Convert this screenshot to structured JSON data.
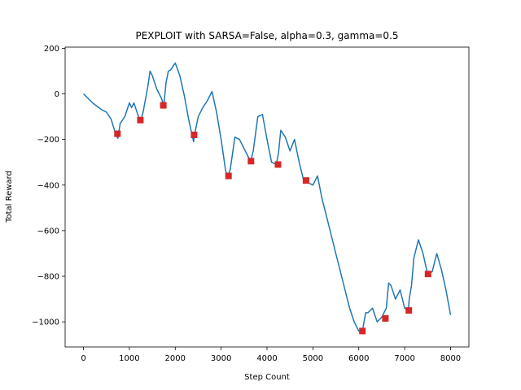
{
  "chart_data": {
    "type": "line",
    "title": "PEXPLOIT with SARSA=False, alpha=0.3, gamma=0.5",
    "xlabel": "Step Count",
    "ylabel": "Total Reward",
    "xlim": [
      -400,
      8400
    ],
    "ylim": [
      -1110,
      205
    ],
    "xticks": [
      0,
      1000,
      2000,
      3000,
      4000,
      5000,
      6000,
      7000,
      8000
    ],
    "yticks": [
      200,
      0,
      -200,
      -400,
      -600,
      -800,
      -1000
    ],
    "xtick_labels": [
      "0",
      "1000",
      "2000",
      "3000",
      "4000",
      "5000",
      "6000",
      "7000",
      "8000"
    ],
    "ytick_labels": [
      "200",
      "0",
      "−200",
      "−400",
      "−600",
      "−800",
      "−1000"
    ],
    "grid": false,
    "series": [
      {
        "color": "#1f77b4",
        "x": [
          0,
          100,
          200,
          300,
          400,
          500,
          600,
          700,
          750,
          800,
          900,
          1000,
          1050,
          1100,
          1200,
          1250,
          1300,
          1400,
          1450,
          1500,
          1600,
          1700,
          1750,
          1800,
          1850,
          1900,
          2000,
          2100,
          2200,
          2300,
          2400,
          2420,
          2500,
          2600,
          2700,
          2800,
          2900,
          3000,
          3100,
          3150,
          3200,
          3300,
          3400,
          3500,
          3600,
          3650,
          3700,
          3800,
          3900,
          4000,
          4100,
          4200,
          4250,
          4300,
          4400,
          4500,
          4600,
          4700,
          4800,
          4850,
          4900,
          5000,
          5100,
          5200,
          5300,
          5400,
          5500,
          5600,
          5700,
          5800,
          5900,
          6000,
          6080,
          6150,
          6200,
          6300,
          6400,
          6500,
          6600,
          6650,
          6700,
          6800,
          6900,
          7000,
          7080,
          7100,
          7150,
          7200,
          7300,
          7400,
          7500,
          7600,
          7700,
          7800,
          7900,
          8000
        ],
        "y": [
          0,
          -20,
          -40,
          -55,
          -70,
          -80,
          -110,
          -175,
          -195,
          -130,
          -100,
          -40,
          -60,
          -40,
          -100,
          -115,
          -80,
          30,
          100,
          80,
          20,
          -20,
          -50,
          50,
          100,
          105,
          135,
          80,
          -10,
          -120,
          -210,
          -180,
          -100,
          -60,
          -30,
          10,
          -80,
          -200,
          -340,
          -360,
          -330,
          -190,
          -200,
          -240,
          -280,
          -290,
          -250,
          -100,
          -90,
          -200,
          -300,
          -310,
          -260,
          -160,
          -190,
          -250,
          -200,
          -300,
          -380,
          -380,
          -390,
          -400,
          -360,
          -460,
          -540,
          -620,
          -700,
          -780,
          -860,
          -940,
          -1000,
          -1040,
          -1040,
          -960,
          -960,
          -940,
          -1000,
          -980,
          -940,
          -830,
          -840,
          -900,
          -860,
          -940,
          -950,
          -900,
          -840,
          -720,
          -640,
          -700,
          -790,
          -780,
          -700,
          -770,
          -860,
          -970
        ]
      }
    ],
    "markers": {
      "color": "#d62728",
      "points": [
        {
          "x": 740,
          "y": -175
        },
        {
          "x": 1240,
          "y": -115
        },
        {
          "x": 1740,
          "y": -50
        },
        {
          "x": 2410,
          "y": -180
        },
        {
          "x": 3160,
          "y": -360
        },
        {
          "x": 3650,
          "y": -295
        },
        {
          "x": 4240,
          "y": -310
        },
        {
          "x": 4850,
          "y": -380
        },
        {
          "x": 6080,
          "y": -1040
        },
        {
          "x": 6580,
          "y": -985
        },
        {
          "x": 7090,
          "y": -950
        },
        {
          "x": 7510,
          "y": -790
        }
      ]
    }
  }
}
